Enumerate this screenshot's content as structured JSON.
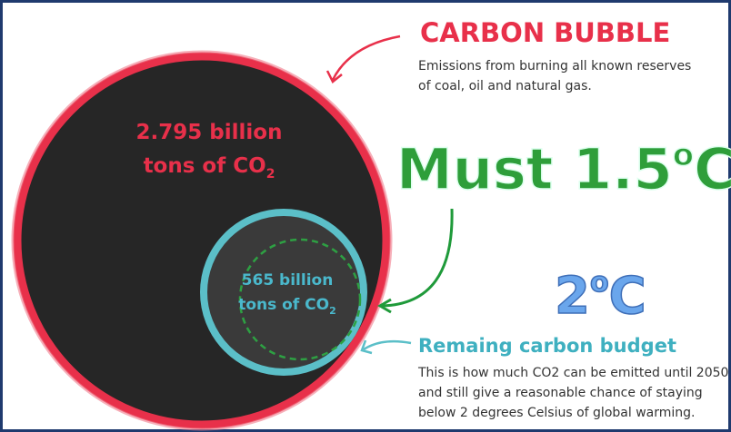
{
  "carbon_bubble": {
    "title": "CARBON BUBBLE",
    "description": [
      "Emissions from burning all known reserves",
      "of coal, oil and natural gas."
    ],
    "amount": {
      "line1": "2.795 billion",
      "line2": "tons of CO",
      "subscript": "2"
    }
  },
  "headline": {
    "text": "Must 1.5",
    "superscript": "o",
    "unit": "C"
  },
  "budget": {
    "amount": {
      "line1": "565 billion",
      "line2": "tons of CO",
      "subscript": "2"
    },
    "title": "Remaing carbon budget",
    "description": [
      "This is how much CO2 can be emitted until 2050",
      "and still give a reasonable chance of staying",
      "below 2 degrees Celsius of global warming."
    ]
  },
  "target": {
    "text": "2",
    "superscript": "o",
    "unit": "C"
  }
}
